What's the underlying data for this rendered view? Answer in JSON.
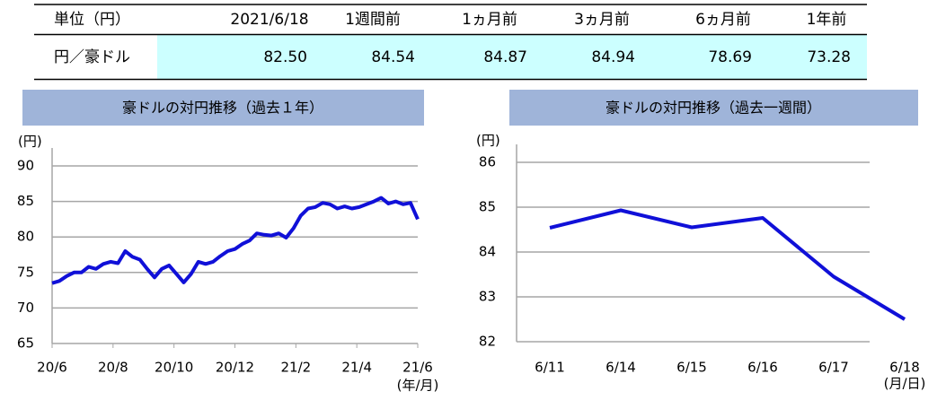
{
  "table": {
    "header": [
      "単位（円）",
      "2021/6/18",
      "1週間前",
      "1ヵ月前",
      "3ヵ月前",
      "6ヵ月前",
      "1年前"
    ],
    "row": {
      "label": "円／豪ドル",
      "values": [
        82.5,
        84.54,
        84.87,
        84.94,
        78.69,
        73.28
      ],
      "value_labels": [
        "82.50",
        "84.54",
        "84.87",
        "84.94",
        "78.69",
        "73.28"
      ]
    }
  },
  "chart_data": [
    {
      "type": "line",
      "title": "豪ドルの対円推移（過去１年）",
      "y_unit": "(円)",
      "x_unit": "(年/月)",
      "xtick_labels": [
        "20/6",
        "20/8",
        "20/10",
        "20/12",
        "21/2",
        "21/4",
        "21/6"
      ],
      "values": [
        73.5,
        73.8,
        74.5,
        75,
        75,
        75.8,
        75.5,
        76.2,
        76.5,
        76.3,
        78,
        77.2,
        76.8,
        75.5,
        74.3,
        75.5,
        76,
        74.8,
        73.6,
        74.8,
        76.5,
        76.2,
        76.5,
        77.3,
        78,
        78.3,
        79,
        79.5,
        80.5,
        80.3,
        80.2,
        80.5,
        79.9,
        81.2,
        83,
        84,
        84.2,
        84.8,
        84.6,
        84,
        84.3,
        84,
        84.2,
        84.6,
        85,
        85.5,
        84.7,
        85,
        84.6,
        84.8,
        82.5
      ],
      "ylim": [
        65,
        90
      ],
      "yticks": [
        65,
        70,
        75,
        80,
        85,
        90
      ],
      "grid": true,
      "color": "#1010d8"
    },
    {
      "type": "line",
      "title": "豪ドルの対円推移（過去一週間）",
      "y_unit": "(円)",
      "x_unit": "(月/日)",
      "categories": [
        "6/11",
        "6/14",
        "6/15",
        "6/16",
        "6/17",
        "6/18"
      ],
      "values": [
        84.54,
        84.93,
        84.55,
        84.76,
        83.45,
        82.5
      ],
      "ylim": [
        82,
        86
      ],
      "yticks": [
        82,
        83,
        84,
        85,
        86
      ],
      "grid": true,
      "color": "#1010d8"
    }
  ]
}
